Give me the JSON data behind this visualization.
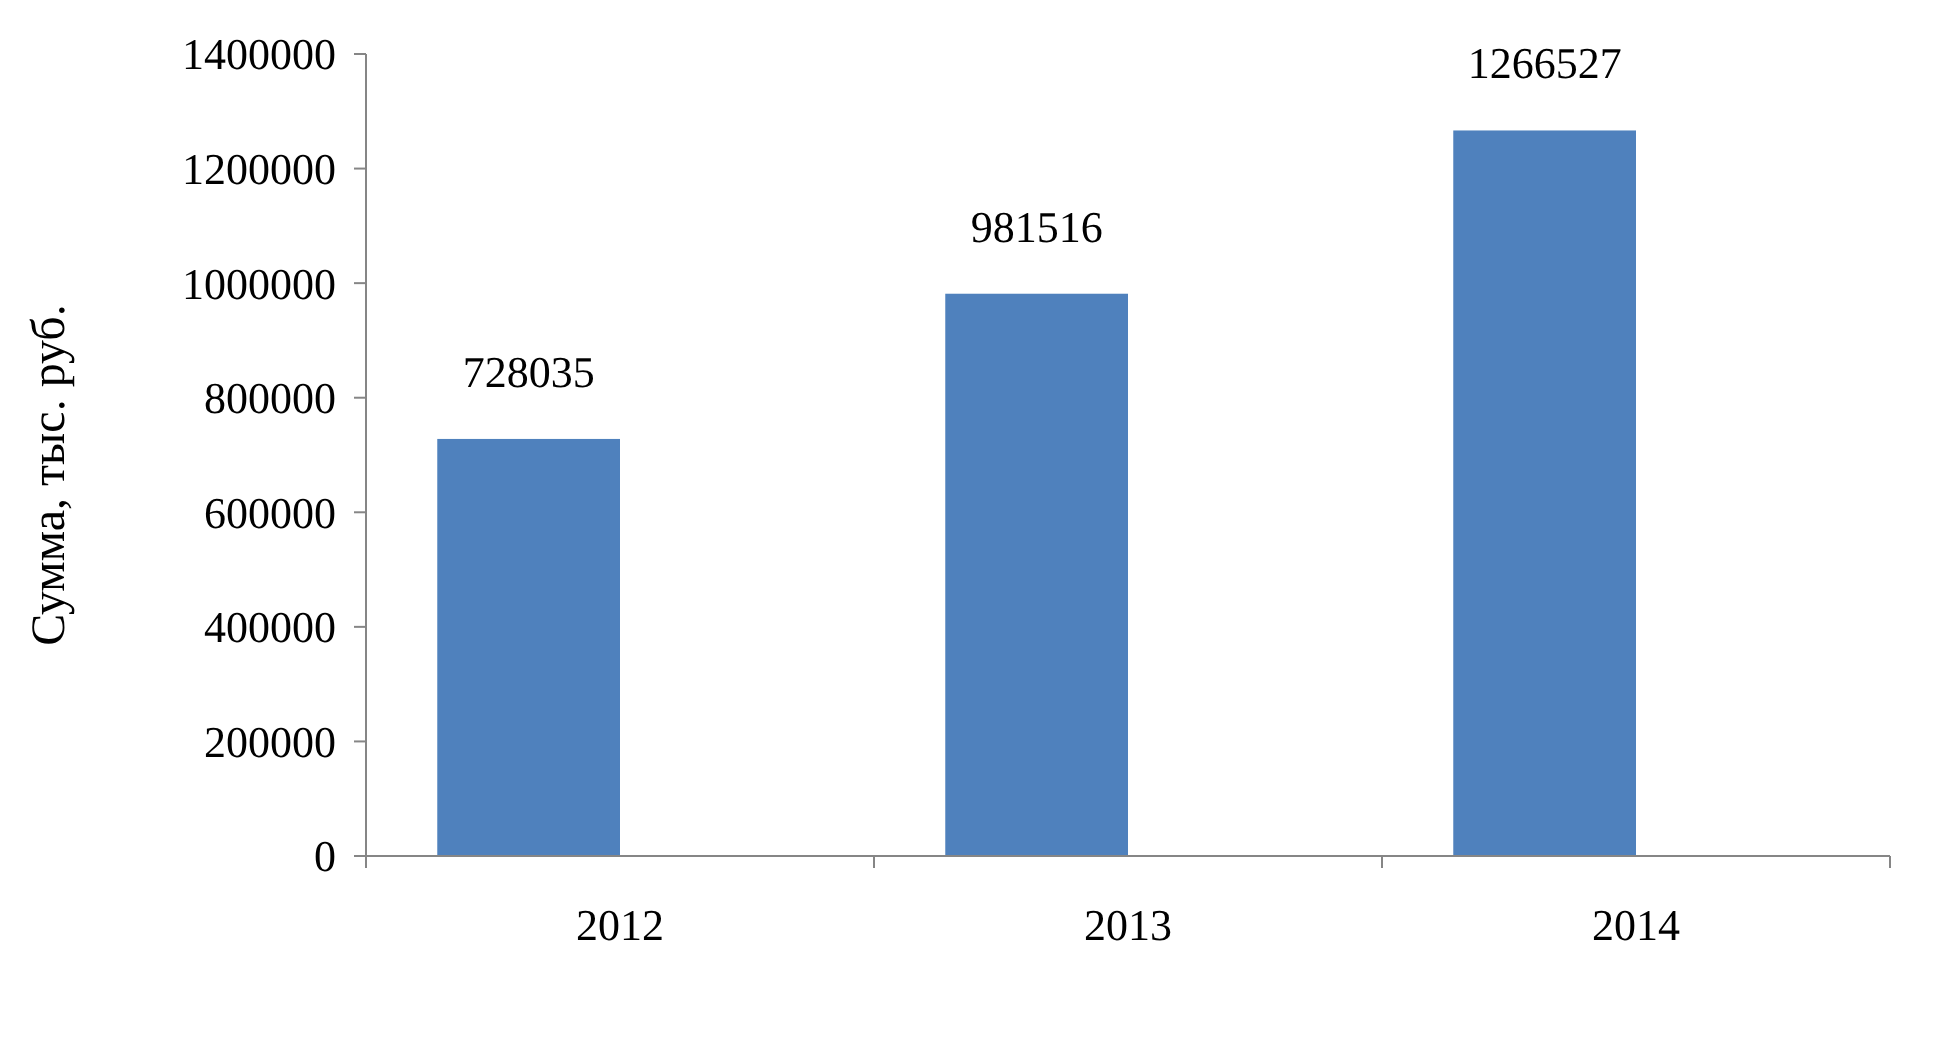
{
  "chart_data": {
    "type": "bar",
    "ylabel": "Сумма, тыс. руб.",
    "categories": [
      "2012",
      "2013",
      "2014"
    ],
    "series": [
      {
        "color": "#4f81bd",
        "values": [
          728035,
          981516,
          1266527
        ]
      },
      {
        "values": [
          null,
          null,
          null
        ]
      }
    ],
    "ylim": [
      0,
      1400000
    ],
    "yticks": [
      0,
      200000,
      400000,
      600000,
      800000,
      1000000,
      1200000,
      1400000
    ],
    "data_labels": true,
    "grid": false
  }
}
